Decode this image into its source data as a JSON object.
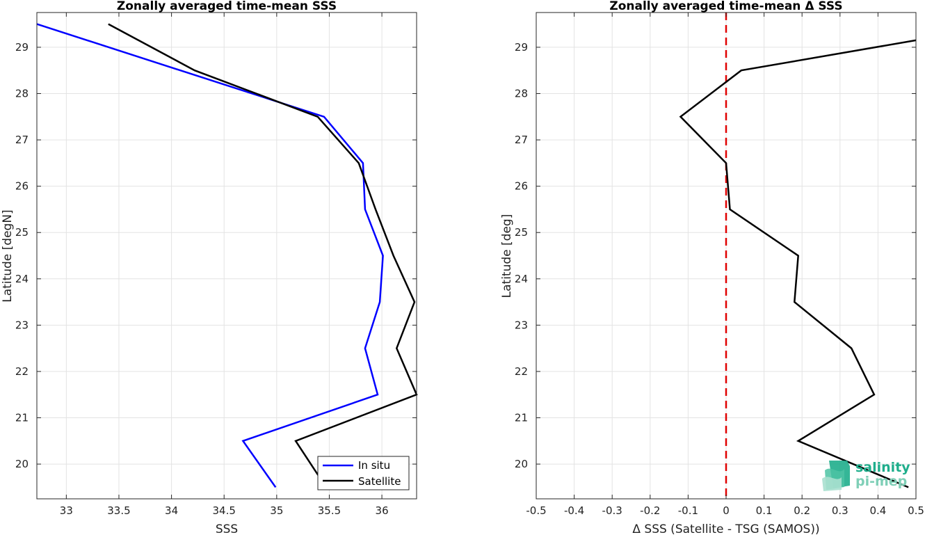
{
  "chart_data": [
    {
      "type": "line",
      "title": "Zonally averaged time-mean SSS",
      "xlabel": "SSS",
      "ylabel": "Latitude [degN]",
      "xlim": [
        32.72,
        36.33
      ],
      "ylim": [
        19.25,
        29.75
      ],
      "xticks": [
        33,
        33.5,
        34,
        34.5,
        35,
        35.5,
        36
      ],
      "xtick_labels": [
        "33",
        "33.5",
        "34",
        "34.5",
        "35",
        "35.5",
        "36"
      ],
      "yticks": [
        20,
        21,
        22,
        23,
        24,
        25,
        26,
        27,
        28,
        29
      ],
      "ytick_labels": [
        "20",
        "21",
        "22",
        "23",
        "24",
        "25",
        "26",
        "27",
        "28",
        "29"
      ],
      "grid": true,
      "legend": "bottom-right",
      "series": [
        {
          "name": "In situ",
          "color": "#0000ff",
          "x": [
            32.72,
            35.45,
            35.82,
            35.84,
            36.01,
            35.98,
            35.84,
            35.96,
            34.68,
            34.99
          ],
          "y": [
            29.5,
            27.5,
            26.5,
            25.5,
            24.5,
            23.5,
            22.5,
            21.5,
            20.5,
            19.5
          ]
        },
        {
          "name": "Satellite",
          "color": "#000000",
          "x": [
            33.4,
            34.22,
            35.39,
            35.78,
            35.94,
            36.11,
            36.31,
            36.14,
            36.33,
            35.18,
            35.47
          ],
          "y": [
            29.5,
            28.5,
            27.5,
            26.5,
            25.5,
            24.5,
            23.5,
            22.5,
            21.5,
            20.5,
            19.5
          ]
        }
      ]
    },
    {
      "type": "line",
      "title": "Zonally averaged time-mean Δ SSS",
      "xlabel": "Δ SSS (Satellite - TSG (SAMOS))",
      "ylabel": "Latitude [deg]",
      "xlim": [
        -0.5,
        0.5
      ],
      "ylim": [
        19.25,
        29.75
      ],
      "xticks": [
        -0.5,
        -0.4,
        -0.3,
        -0.2,
        -0.1,
        0,
        0.1,
        0.2,
        0.3,
        0.4,
        0.5
      ],
      "xtick_labels": [
        "-0.5",
        "-0.4",
        "-0.3",
        "-0.2",
        "-0.1",
        "0",
        "0.1",
        "0.2",
        "0.3",
        "0.4",
        "0.5"
      ],
      "yticks": [
        20,
        21,
        22,
        23,
        24,
        25,
        26,
        27,
        28,
        29
      ],
      "ytick_labels": [
        "20",
        "21",
        "22",
        "23",
        "24",
        "25",
        "26",
        "27",
        "28",
        "29"
      ],
      "grid": true,
      "reference_line": {
        "x": 0,
        "color": "#e00000",
        "style": "dashed"
      },
      "series": [
        {
          "color": "#000000",
          "x": [
            0.5,
            0.04,
            -0.12,
            0.0,
            0.01,
            0.19,
            0.18,
            0.33,
            0.39,
            0.19,
            0.48
          ],
          "y": [
            29.15,
            28.5,
            27.5,
            26.5,
            25.5,
            24.5,
            23.5,
            22.5,
            21.5,
            20.5,
            19.5
          ]
        }
      ]
    }
  ],
  "logo": {
    "line1": "salinity",
    "line2": "pi-mep",
    "color_top": "#1fae8c",
    "color_bottom": "#a8e0cf"
  }
}
